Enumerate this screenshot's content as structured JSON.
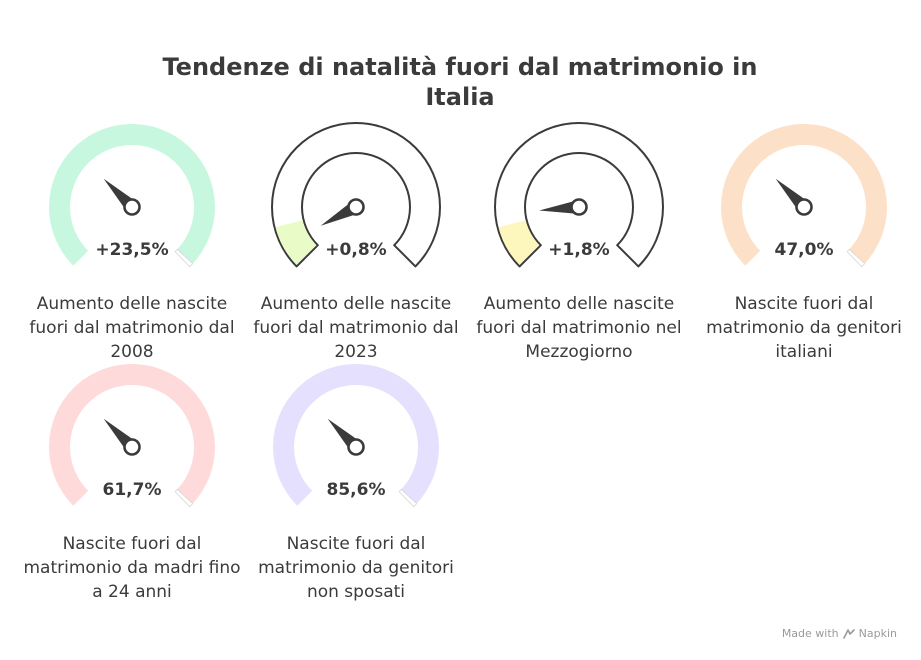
{
  "title": "Tendenze di natalità fuori dal matrimonio in Italia",
  "footer": {
    "made_with": "Made with",
    "brand": "Napkin",
    "logo_icon": "napkin-logo-icon"
  },
  "chart_data": {
    "type": "gauge",
    "title": "Tendenze di natalità fuori dal matrimonio in Italia",
    "items": [
      {
        "value_label": "+23,5%",
        "value": 23.5,
        "label": "Aumento delle nascite fuori dal matrimonio dal 2008",
        "style": "full",
        "color": "#c8f7e0",
        "needle_angle": -45
      },
      {
        "value_label": "+0,8%",
        "value": 0.8,
        "label": "Aumento delle nascite fuori dal matrimonio dal 2023",
        "style": "outline",
        "color": "#e9fcc8",
        "needle_angle": -118
      },
      {
        "value_label": "+1,8%",
        "value": 1.8,
        "label": "Aumento delle nascite fuori dal matrimonio nel Mezzogiorno",
        "style": "outline",
        "color": "#fdf6bd",
        "needle_angle": -95
      },
      {
        "value_label": "47,0%",
        "value": 47.0,
        "label": "Nascite fuori dal matrimonio da genitori italiani",
        "style": "full",
        "color": "#fde0c8",
        "needle_angle": -45
      },
      {
        "value_label": "61,7%",
        "value": 61.7,
        "label": "Nascite fuori dal matrimonio da madri fino a 24 anni",
        "style": "full",
        "color": "#fedada",
        "needle_angle": -45
      },
      {
        "value_label": "85,6%",
        "value": 85.6,
        "label": "Nascite fuori dal matrimonio da genitori non sposati",
        "style": "full",
        "color": "#e4e0fd",
        "needle_angle": -45
      }
    ]
  }
}
